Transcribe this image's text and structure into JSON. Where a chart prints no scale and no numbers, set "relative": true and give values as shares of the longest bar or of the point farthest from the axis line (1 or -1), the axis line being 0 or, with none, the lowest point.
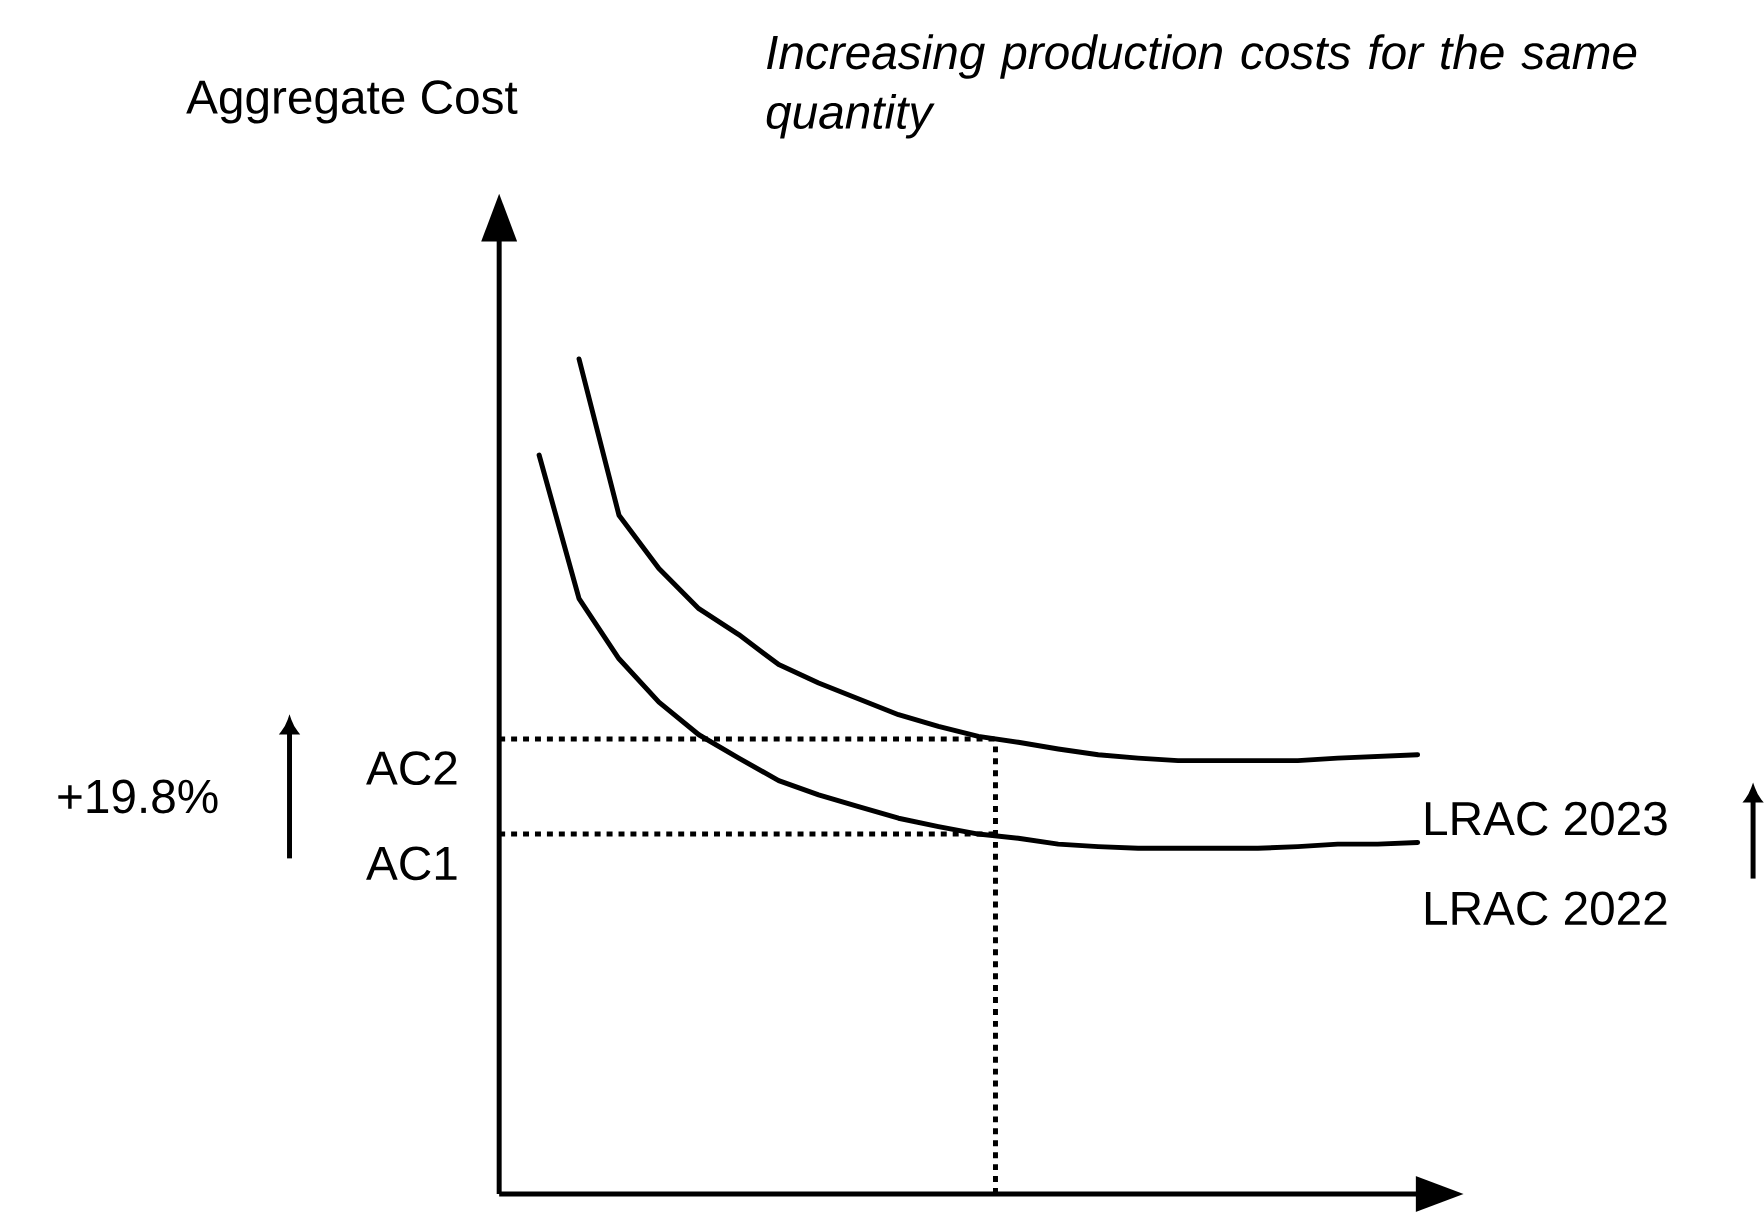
{
  "chart_data": {
    "type": "line",
    "relative": true,
    "title": "Increasing production costs for the same quantity",
    "categories": [
      null,
      null,
      null,
      null,
      null,
      null,
      null,
      null,
      null,
      null,
      null,
      null,
      null,
      null,
      null,
      null,
      null,
      null,
      null,
      null,
      null,
      null,
      null
    ],
    "series": [
      {
        "name": "LRAC 2023",
        "color": "#000000",
        "values": [
          null,
          1,
          0.813,
          0.749,
          0.701,
          0.67,
          0.634,
          0.612,
          0.593,
          0.574,
          0.56,
          0.548,
          0.541,
          0.533,
          0.526,
          0.522,
          0.519,
          0.519,
          0.519,
          0.519,
          0.522,
          0.524,
          0.526
        ]
      },
      {
        "name": "LRAC 2022",
        "color": "#000000",
        "values": [
          0.885,
          0.713,
          0.641,
          0.589,
          0.55,
          0.522,
          0.495,
          0.478,
          0.464,
          0.45,
          0.44,
          0.431,
          0.426,
          0.419,
          0.416,
          0.414,
          0.414,
          0.414,
          0.414,
          0.416,
          0.419,
          0.419,
          0.421
        ]
      }
    ],
    "ref_lines": [
      {
        "axis": "y",
        "value": 0.545,
        "label": "AC2",
        "line_style": "dotted"
      },
      {
        "axis": "y",
        "value": 0.431,
        "label": "AC1",
        "line_style": "dotted"
      }
    ],
    "annotations": [
      "Aggregate Cost",
      "+19.8%"
    ],
    "marker": "none",
    "line_style": "solid"
  }
}
